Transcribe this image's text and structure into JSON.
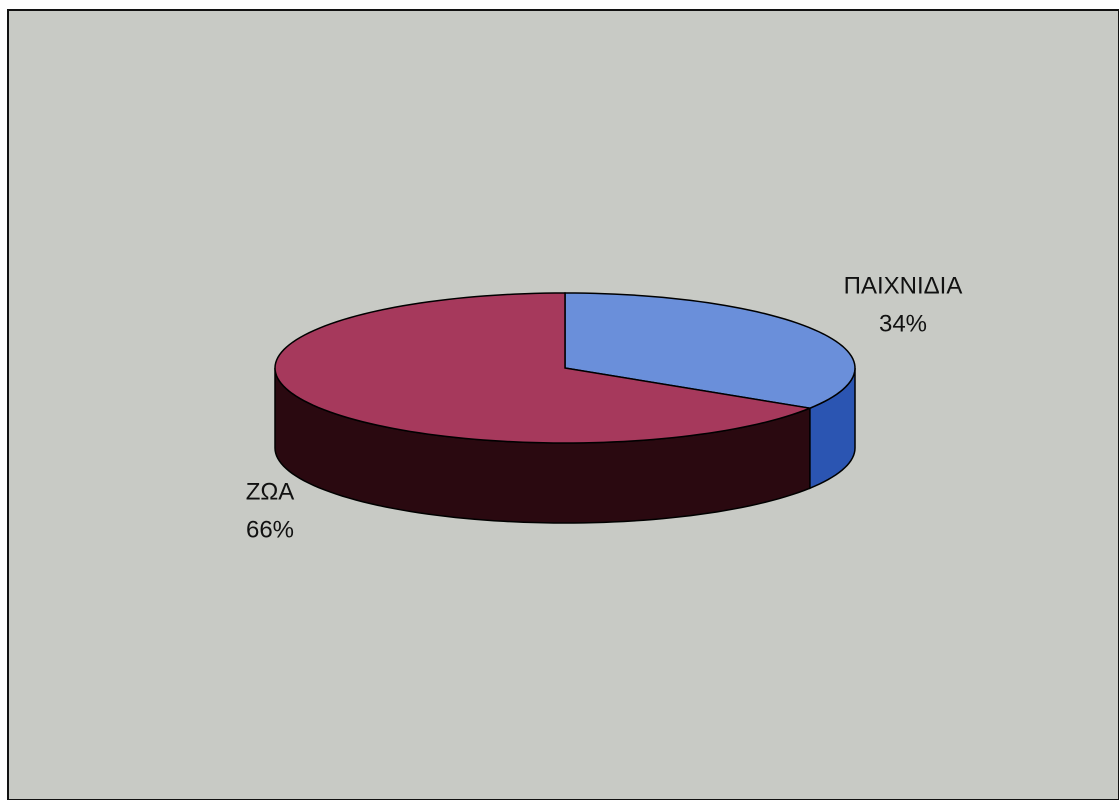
{
  "chart_data": {
    "type": "pie",
    "three_d": true,
    "categories": [
      "ΠΑΙΧΝΙΔΙΑ",
      "ΖΩΑ"
    ],
    "values": [
      34,
      66
    ],
    "value_labels": [
      "34%",
      "66%"
    ],
    "colors": [
      "#6a8fda",
      "#a6395c"
    ],
    "side_colors": [
      "#2b55b2",
      "#2a0910"
    ]
  }
}
